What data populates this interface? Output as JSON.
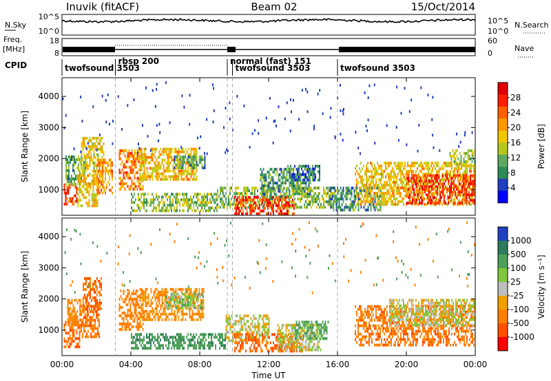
{
  "header": {
    "station": "Inuvik (fitACF)",
    "beam": "Beam 02",
    "date": "15/Oct/2014"
  },
  "strip": {
    "nsky_label": "N.Sky",
    "nsky_ticks": [
      "10^5",
      "10^0"
    ],
    "nsearch_label": "N.Search",
    "nsearch_ticks": [
      "10^5",
      "10^0"
    ],
    "freq_label_1": "Freq.",
    "freq_label_2": "[MHz]",
    "freq_ticks": [
      "18",
      "8"
    ],
    "nave_label": "Nave",
    "nave_ticks": [
      "60",
      "0"
    ],
    "cpid_label": "CPID"
  },
  "colors": {
    "power": [
      "#0000ff",
      "#1f3fbf",
      "#2e8b57",
      "#5fa860",
      "#b4c81e",
      "#f0c800",
      "#ff9900",
      "#ff6000",
      "#ff2000",
      "#e00000"
    ],
    "velocity": [
      "#2040c0",
      "#2e7d5a",
      "#4ea05a",
      "#7fc83c",
      "#bebebe",
      "#f0a000",
      "#ff8000",
      "#ff5000",
      "#ff0000"
    ]
  },
  "chart_data": [
    {
      "type": "table",
      "name": "cpid_modes",
      "modes": [
        {
          "label": "twofsound 3503",
          "start_hour": 0.0
        },
        {
          "label": "rbsp 200",
          "start_hour": 3.1
        },
        {
          "label": "normal (fast) 151",
          "start_hour": 9.6
        },
        {
          "label": "twofsound 3503",
          "start_hour": 9.9
        },
        {
          "label": "twofsound 3503",
          "start_hour": 16.0
        }
      ]
    },
    {
      "type": "heatmap",
      "name": "power",
      "xlabel": "Time UT",
      "ylabel": "Slant Range [km]",
      "xlim": [
        0,
        24
      ],
      "ylim": [
        180,
        4600
      ],
      "x_ticks": [
        "00:00",
        "04:00",
        "08:00",
        "12:00",
        "16:00",
        "20:00",
        "00:00"
      ],
      "y_ticks": [
        1000,
        2000,
        3000,
        4000
      ],
      "colorbar_label": "Power [dB]",
      "colorbar_range": [
        0,
        32
      ],
      "colorbar_ticks": [
        4,
        8,
        12,
        16,
        20,
        24,
        28
      ],
      "regions": [
        {
          "t": [
            0.1,
            0.9
          ],
          "r": [
            500,
            1200
          ],
          "v": 26
        },
        {
          "t": [
            0.2,
            1.4
          ],
          "r": [
            1200,
            2100
          ],
          "v": 11
        },
        {
          "t": [
            0.9,
            2.1
          ],
          "r": [
            500,
            1500
          ],
          "v": 18
        },
        {
          "t": [
            1.1,
            2.4
          ],
          "r": [
            1500,
            2700
          ],
          "v": 17
        },
        {
          "t": [
            2.0,
            2.9
          ],
          "r": [
            900,
            2000
          ],
          "v": 21
        },
        {
          "t": [
            3.3,
            4.7
          ],
          "r": [
            1000,
            2300
          ],
          "v": 22
        },
        {
          "t": [
            4.5,
            7.8
          ],
          "r": [
            1300,
            2350
          ],
          "v": 18
        },
        {
          "t": [
            6.5,
            8.3
          ],
          "r": [
            1700,
            2100
          ],
          "v": 10
        },
        {
          "t": [
            4.0,
            9.0
          ],
          "r": [
            300,
            900
          ],
          "v": 13
        },
        {
          "t": [
            9.0,
            16.0
          ],
          "r": [
            400,
            1100
          ],
          "v": 13
        },
        {
          "t": [
            10.0,
            13.5
          ],
          "r": [
            250,
            800
          ],
          "v": 26
        },
        {
          "t": [
            11.5,
            14.5
          ],
          "r": [
            800,
            1700
          ],
          "v": 10
        },
        {
          "t": [
            13.0,
            15.0
          ],
          "r": [
            1300,
            1800
          ],
          "v": 7
        },
        {
          "t": [
            15.5,
            18.5
          ],
          "r": [
            350,
            1100
          ],
          "v": 9
        },
        {
          "t": [
            17.0,
            24.0
          ],
          "r": [
            500,
            1900
          ],
          "v": 18
        },
        {
          "t": [
            20.0,
            24.0
          ],
          "r": [
            600,
            1500
          ],
          "v": 26
        },
        {
          "t": [
            22.5,
            24.0
          ],
          "r": [
            1800,
            2300
          ],
          "v": 14
        }
      ]
    },
    {
      "type": "heatmap",
      "name": "velocity",
      "xlabel": "Time UT",
      "ylabel": "Slant Range [km]",
      "xlim": [
        0,
        24
      ],
      "ylim": [
        180,
        4600
      ],
      "x_ticks": [
        "00:00",
        "04:00",
        "08:00",
        "12:00",
        "16:00",
        "20:00",
        "00:00"
      ],
      "y_ticks": [
        1000,
        2000,
        3000,
        4000
      ],
      "colorbar_label": "Velocity [m s⁻¹]",
      "colorbar_ticks": [
        "1000",
        "500",
        "100",
        "25",
        "-25",
        "-100",
        "-500",
        "-1000"
      ],
      "regions": [
        {
          "t": [
            0.1,
            1.0
          ],
          "r": [
            500,
            1300
          ],
          "v": -300
        },
        {
          "t": [
            0.3,
            1.5
          ],
          "r": [
            1200,
            2000
          ],
          "v": -150
        },
        {
          "t": [
            1.0,
            2.2
          ],
          "r": [
            800,
            1800
          ],
          "v": -250
        },
        {
          "t": [
            1.2,
            2.3
          ],
          "r": [
            1600,
            2700
          ],
          "v": -300
        },
        {
          "t": [
            3.3,
            4.7
          ],
          "r": [
            1000,
            2300
          ],
          "v": -200
        },
        {
          "t": [
            4.5,
            8.2
          ],
          "r": [
            1300,
            2350
          ],
          "v": -120
        },
        {
          "t": [
            6.0,
            8.2
          ],
          "r": [
            1700,
            2200
          ],
          "v": 60
        },
        {
          "t": [
            4.0,
            9.5
          ],
          "r": [
            400,
            900
          ],
          "v": 200
        },
        {
          "t": [
            9.5,
            12.0
          ],
          "r": [
            700,
            1500
          ],
          "v": 0
        },
        {
          "t": [
            10.0,
            14.0
          ],
          "r": [
            300,
            900
          ],
          "v": -300
        },
        {
          "t": [
            12.5,
            15.0
          ],
          "r": [
            400,
            1200
          ],
          "v": 10
        },
        {
          "t": [
            13.5,
            15.5
          ],
          "r": [
            700,
            1300
          ],
          "v": 150
        },
        {
          "t": [
            17.0,
            24.0
          ],
          "r": [
            500,
            1800
          ],
          "v": -250
        },
        {
          "t": [
            19.0,
            24.0
          ],
          "r": [
            1200,
            2000
          ],
          "v": 0
        }
      ]
    }
  ]
}
